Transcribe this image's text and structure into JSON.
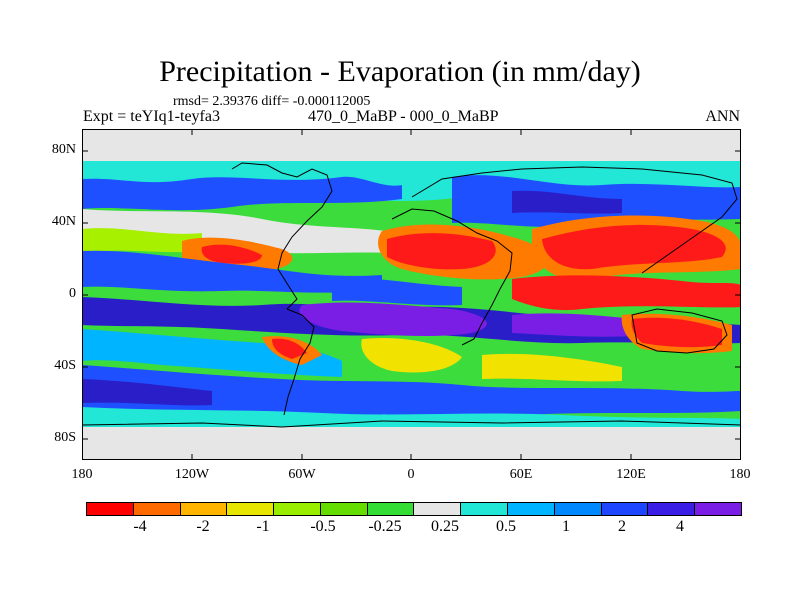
{
  "title": "Precipitation - Evaporation (in mm/day)",
  "stats": "rmsd= 2.39376 diff= -0.000112005",
  "expt": "Expt = teYIq1-teyfa3",
  "pair": "470_0_MaBP - 000_0_MaBP",
  "season": "ANN",
  "y_ticks": [
    "80N",
    "40N",
    "0",
    "40S",
    "80S"
  ],
  "x_ticks": [
    "180",
    "120W",
    "60W",
    "0",
    "60E",
    "120E",
    "180"
  ],
  "colorbar": {
    "colors": [
      "#ff0000",
      "#ff6a00",
      "#ffb400",
      "#e6e600",
      "#99ee00",
      "#66dd00",
      "#33dd33",
      "#e6e6e6",
      "#22e6d6",
      "#00b4ff",
      "#0088ff",
      "#1e46ff",
      "#3a1ee6",
      "#7a1ee6"
    ],
    "labels": [
      "-4",
      "-2",
      "-1",
      "-0.5",
      "-0.25",
      "0.25",
      "0.5",
      "1",
      "2",
      "4"
    ]
  },
  "colors": {
    "red": "#ff1a1a",
    "orange": "#ff7a00",
    "yellow": "#f2e200",
    "lightgreen": "#a6f000",
    "green": "#3ddc3d",
    "grey": "#e6e6e6",
    "cyan": "#22e6d6",
    "lightblue": "#00b4ff",
    "blue": "#1e50ff",
    "darkblue": "#2a1ec8",
    "purple": "#7a1ee6"
  }
}
